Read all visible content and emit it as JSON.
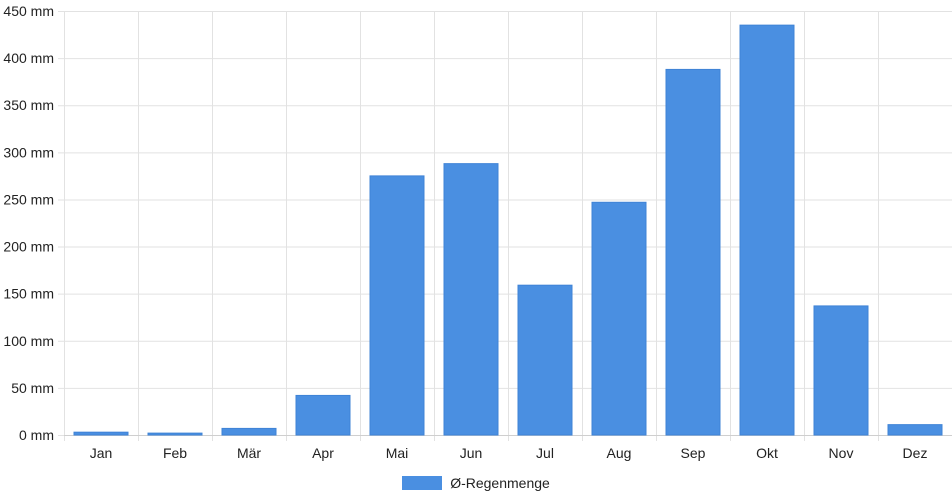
{
  "chart_data": {
    "type": "bar",
    "categories": [
      "Jan",
      "Feb",
      "Mär",
      "Apr",
      "Mai",
      "Jun",
      "Jul",
      "Aug",
      "Sep",
      "Okt",
      "Nov",
      "Dez"
    ],
    "series": [
      {
        "name": "Ø-Regenmenge",
        "values": [
          3,
          2,
          7,
          42,
          275,
          288,
          159,
          247,
          388,
          435,
          137,
          11
        ],
        "color": "#4a8fe1"
      }
    ],
    "yticks": [
      0,
      50,
      100,
      150,
      200,
      250,
      300,
      350,
      400,
      450
    ],
    "y_unit": "mm",
    "ylim": [
      0,
      450
    ],
    "grid": true,
    "legend_position": "bottom-center"
  }
}
